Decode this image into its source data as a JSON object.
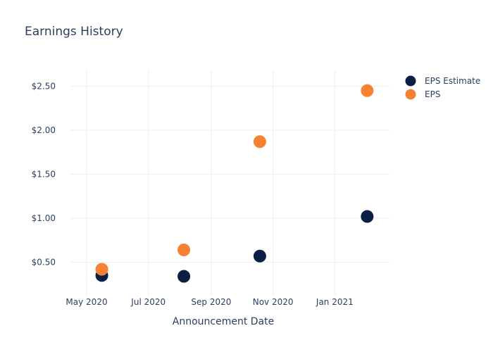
{
  "chart_data": {
    "type": "scatter",
    "title": "Earnings History",
    "xlabel": "Announcement Date",
    "ylabel": "",
    "x_ticks": [
      {
        "date": "2020-05-01",
        "label": "May 2020"
      },
      {
        "date": "2020-07-01",
        "label": "Jul 2020"
      },
      {
        "date": "2020-09-01",
        "label": "Sep 2020"
      },
      {
        "date": "2020-11-01",
        "label": "Nov 2020"
      },
      {
        "date": "2021-01-01",
        "label": "Jan 2021"
      }
    ],
    "y_ticks": [
      {
        "value": 0.5,
        "label": "$0.50"
      },
      {
        "value": 1.0,
        "label": "$1.00"
      },
      {
        "value": 1.5,
        "label": "$1.50"
      },
      {
        "value": 2.0,
        "label": "$2.00"
      },
      {
        "value": 2.5,
        "label": "$2.50"
      }
    ],
    "xlim": [
      "2020-04-15",
      "2021-02-24"
    ],
    "ylim": [
      0.12,
      2.68
    ],
    "grid": true,
    "legend_position": "top-right",
    "series": [
      {
        "name": "EPS Estimate",
        "color": "#0b1f44",
        "points": [
          {
            "x": "2020-05-16",
            "y": 0.35
          },
          {
            "x": "2020-08-05",
            "y": 0.34
          },
          {
            "x": "2020-10-19",
            "y": 0.57
          },
          {
            "x": "2021-02-02",
            "y": 1.02
          }
        ]
      },
      {
        "name": "EPS",
        "color": "#f58232",
        "points": [
          {
            "x": "2020-05-16",
            "y": 0.42
          },
          {
            "x": "2020-08-05",
            "y": 0.64
          },
          {
            "x": "2020-10-19",
            "y": 1.87
          },
          {
            "x": "2021-02-02",
            "y": 2.45
          }
        ]
      }
    ]
  }
}
